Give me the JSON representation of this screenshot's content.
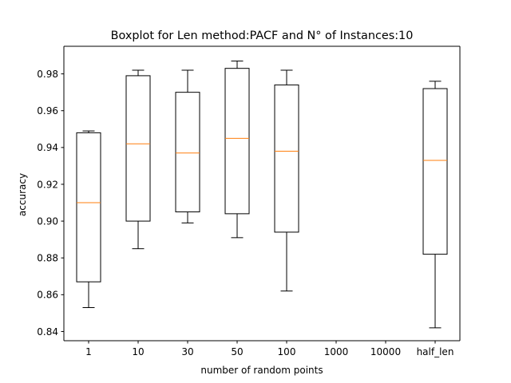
{
  "chart_data": {
    "type": "boxplot",
    "title": "Boxplot for Len method:PACF and N° of Instances:10",
    "xlabel": "number of random points",
    "ylabel": "accuracy",
    "categories": [
      "1",
      "10",
      "30",
      "50",
      "100",
      "1000",
      "10000",
      "half_len"
    ],
    "ylim": [
      0.835,
      0.995
    ],
    "yticks": [
      0.84,
      0.86,
      0.88,
      0.9,
      0.92,
      0.94,
      0.96,
      0.98
    ],
    "ytick_labels": [
      "0.84",
      "0.86",
      "0.88",
      "0.90",
      "0.92",
      "0.94",
      "0.96",
      "0.98"
    ],
    "grid": false,
    "boxes": [
      {
        "category": "1",
        "whisker_low": 0.853,
        "q1": 0.867,
        "median": 0.91,
        "q3": 0.948,
        "whisker_high": 0.949
      },
      {
        "category": "10",
        "whisker_low": 0.885,
        "q1": 0.9,
        "median": 0.942,
        "q3": 0.979,
        "whisker_high": 0.982
      },
      {
        "category": "30",
        "whisker_low": 0.899,
        "q1": 0.905,
        "median": 0.937,
        "q3": 0.97,
        "whisker_high": 0.982
      },
      {
        "category": "50",
        "whisker_low": 0.891,
        "q1": 0.904,
        "median": 0.945,
        "q3": 0.983,
        "whisker_high": 0.987
      },
      {
        "category": "100",
        "whisker_low": 0.862,
        "q1": 0.894,
        "median": 0.938,
        "q3": 0.974,
        "whisker_high": 0.982
      },
      {
        "category": "1000",
        "empty": true
      },
      {
        "category": "10000",
        "empty": true
      },
      {
        "category": "half_len",
        "whisker_low": 0.842,
        "q1": 0.882,
        "median": 0.933,
        "q3": 0.972,
        "whisker_high": 0.976
      }
    ],
    "colors": {
      "box": "#000000",
      "median": "#ff7f0e"
    }
  }
}
